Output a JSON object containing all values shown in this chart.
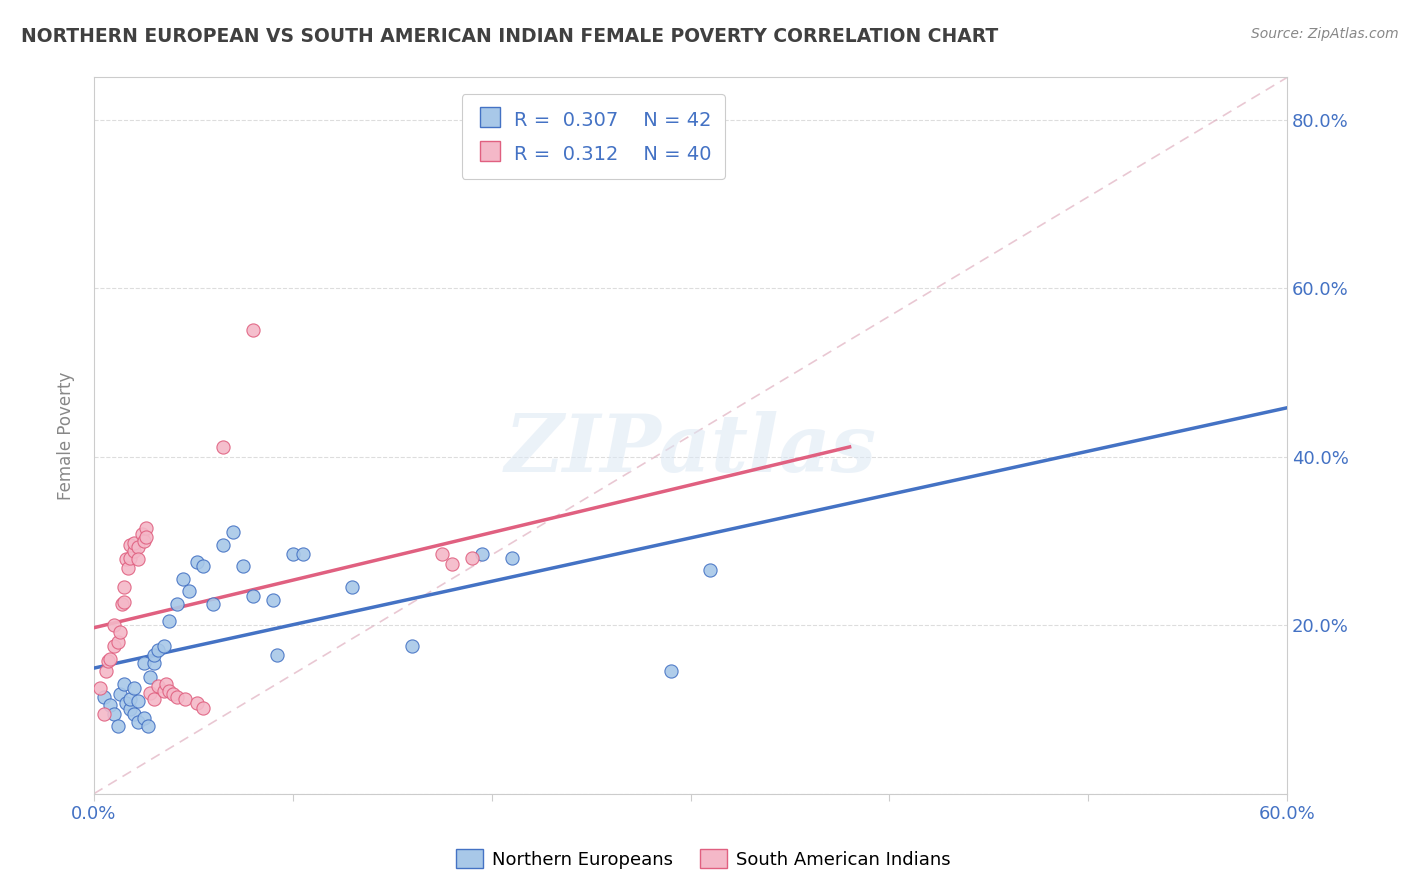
{
  "title": "NORTHERN EUROPEAN VS SOUTH AMERICAN INDIAN FEMALE POVERTY CORRELATION CHART",
  "source": "Source: ZipAtlas.com",
  "ylabel": "Female Poverty",
  "xlim": [
    0.0,
    0.6
  ],
  "ylim": [
    0.0,
    0.85
  ],
  "xticks": [
    0.0,
    0.1,
    0.2,
    0.3,
    0.4,
    0.5,
    0.6
  ],
  "yticks": [
    0.0,
    0.2,
    0.4,
    0.6,
    0.8
  ],
  "xtick_labels": [
    "0.0%",
    "",
    "",
    "",
    "",
    "",
    "60.0%"
  ],
  "ytick_labels_right": [
    "",
    "20.0%",
    "40.0%",
    "60.0%",
    "80.0%"
  ],
  "watermark": "ZIPatlas",
  "legend_label1": "Northern Europeans",
  "legend_label2": "South American Indians",
  "blue_color": "#a8c8e8",
  "pink_color": "#f4b8c8",
  "blue_line_color": "#4472C4",
  "pink_line_color": "#e06080",
  "blue_dash_color": "#c0d4ee",
  "title_color": "#404040",
  "axis_label_color": "#888888",
  "tick_color": "#4472C4",
  "blue_scatter": [
    [
      0.005,
      0.115
    ],
    [
      0.008,
      0.105
    ],
    [
      0.01,
      0.095
    ],
    [
      0.012,
      0.08
    ],
    [
      0.013,
      0.118
    ],
    [
      0.015,
      0.13
    ],
    [
      0.016,
      0.108
    ],
    [
      0.018,
      0.1
    ],
    [
      0.018,
      0.112
    ],
    [
      0.02,
      0.125
    ],
    [
      0.02,
      0.095
    ],
    [
      0.022,
      0.085
    ],
    [
      0.022,
      0.11
    ],
    [
      0.025,
      0.09
    ],
    [
      0.025,
      0.155
    ],
    [
      0.027,
      0.08
    ],
    [
      0.028,
      0.138
    ],
    [
      0.03,
      0.155
    ],
    [
      0.03,
      0.165
    ],
    [
      0.032,
      0.17
    ],
    [
      0.035,
      0.175
    ],
    [
      0.038,
      0.205
    ],
    [
      0.042,
      0.225
    ],
    [
      0.045,
      0.255
    ],
    [
      0.048,
      0.24
    ],
    [
      0.052,
      0.275
    ],
    [
      0.055,
      0.27
    ],
    [
      0.06,
      0.225
    ],
    [
      0.065,
      0.295
    ],
    [
      0.07,
      0.31
    ],
    [
      0.075,
      0.27
    ],
    [
      0.08,
      0.235
    ],
    [
      0.09,
      0.23
    ],
    [
      0.092,
      0.165
    ],
    [
      0.1,
      0.285
    ],
    [
      0.105,
      0.285
    ],
    [
      0.13,
      0.245
    ],
    [
      0.16,
      0.175
    ],
    [
      0.195,
      0.285
    ],
    [
      0.21,
      0.28
    ],
    [
      0.29,
      0.145
    ],
    [
      0.31,
      0.265
    ]
  ],
  "pink_scatter": [
    [
      0.003,
      0.125
    ],
    [
      0.005,
      0.095
    ],
    [
      0.006,
      0.145
    ],
    [
      0.007,
      0.158
    ],
    [
      0.008,
      0.16
    ],
    [
      0.01,
      0.175
    ],
    [
      0.01,
      0.2
    ],
    [
      0.012,
      0.18
    ],
    [
      0.013,
      0.192
    ],
    [
      0.014,
      0.225
    ],
    [
      0.015,
      0.228
    ],
    [
      0.015,
      0.245
    ],
    [
      0.016,
      0.278
    ],
    [
      0.017,
      0.268
    ],
    [
      0.018,
      0.28
    ],
    [
      0.018,
      0.295
    ],
    [
      0.02,
      0.288
    ],
    [
      0.02,
      0.298
    ],
    [
      0.022,
      0.293
    ],
    [
      0.022,
      0.278
    ],
    [
      0.024,
      0.308
    ],
    [
      0.025,
      0.3
    ],
    [
      0.026,
      0.315
    ],
    [
      0.026,
      0.305
    ],
    [
      0.028,
      0.12
    ],
    [
      0.03,
      0.112
    ],
    [
      0.032,
      0.128
    ],
    [
      0.035,
      0.122
    ],
    [
      0.036,
      0.13
    ],
    [
      0.038,
      0.122
    ],
    [
      0.04,
      0.118
    ],
    [
      0.042,
      0.115
    ],
    [
      0.046,
      0.112
    ],
    [
      0.052,
      0.108
    ],
    [
      0.055,
      0.102
    ],
    [
      0.065,
      0.412
    ],
    [
      0.08,
      0.55
    ],
    [
      0.175,
      0.285
    ],
    [
      0.18,
      0.272
    ],
    [
      0.19,
      0.28
    ]
  ],
  "ref_line": [
    [
      0.0,
      0.0
    ],
    [
      0.6,
      0.85
    ]
  ]
}
